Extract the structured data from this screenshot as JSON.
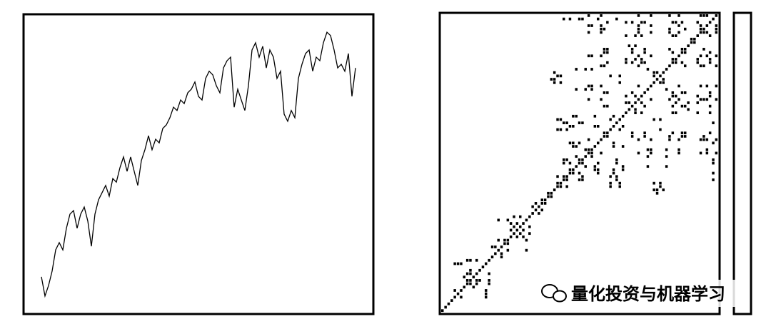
{
  "chart_data": [
    {
      "type": "line",
      "color": "#000000",
      "xlim": [
        -5,
        93
      ],
      "ylim": [
        0,
        100
      ],
      "values": [
        12.4,
        6.0,
        9.5,
        14.3,
        21.4,
        23.8,
        21.4,
        28.6,
        33.3,
        34.5,
        28.6,
        33.3,
        35.7,
        31.0,
        22.6,
        33.3,
        38.1,
        40.5,
        42.9,
        39.3,
        45.2,
        44.0,
        48.8,
        52.4,
        47.6,
        52.4,
        47.6,
        42.9,
        51.2,
        54.8,
        59.5,
        54.8,
        58.3,
        57.1,
        61.9,
        63.1,
        65.5,
        69.0,
        67.9,
        71.4,
        70.2,
        73.8,
        75.0,
        77.4,
        72.6,
        71.4,
        78.6,
        81.0,
        79.8,
        76.2,
        73.8,
        82.1,
        84.5,
        85.7,
        69.0,
        75.0,
        71.4,
        67.9,
        76.2,
        88.1,
        90.5,
        85.7,
        89.3,
        82.1,
        88.1,
        85.7,
        78.6,
        81.0,
        66.7,
        64.3,
        67.9,
        65.5,
        78.6,
        83.3,
        86.9,
        88.1,
        81.0,
        85.7,
        84.5,
        90.5,
        94.0,
        92.9,
        88.1,
        82.1,
        83.3,
        81.0,
        86.9,
        72.6,
        82.1
      ]
    },
    {
      "type": "recurrence",
      "color": "#000000",
      "threshold": 1.5
    }
  ],
  "watermark": "量化投资与机器学习"
}
